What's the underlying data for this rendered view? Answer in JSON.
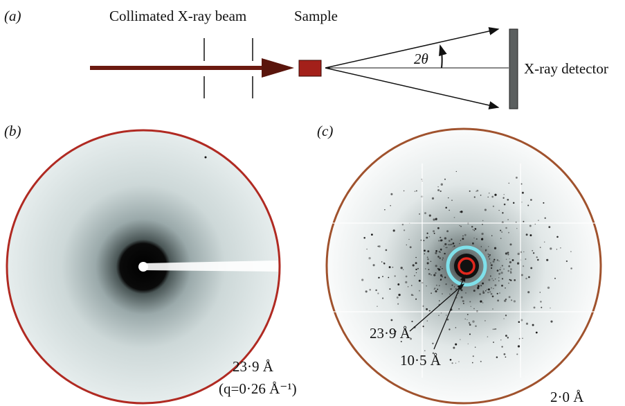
{
  "panel_a": {
    "label": "(a)",
    "beam_label": "Collimated X-ray beam",
    "sample_label": "Sample",
    "angle_label": "2θ",
    "detector_label": "X-ray detector"
  },
  "panel_b": {
    "label": "(b)",
    "ring_label": "23·9 Å",
    "q_label": "(q=0·26 Å⁻¹)"
  },
  "panel_c": {
    "label": "(c)",
    "outer_ring_label": "23·9 Å",
    "inner_ring_label": "10·5 Å",
    "edge_label": "2·0 Å"
  }
}
